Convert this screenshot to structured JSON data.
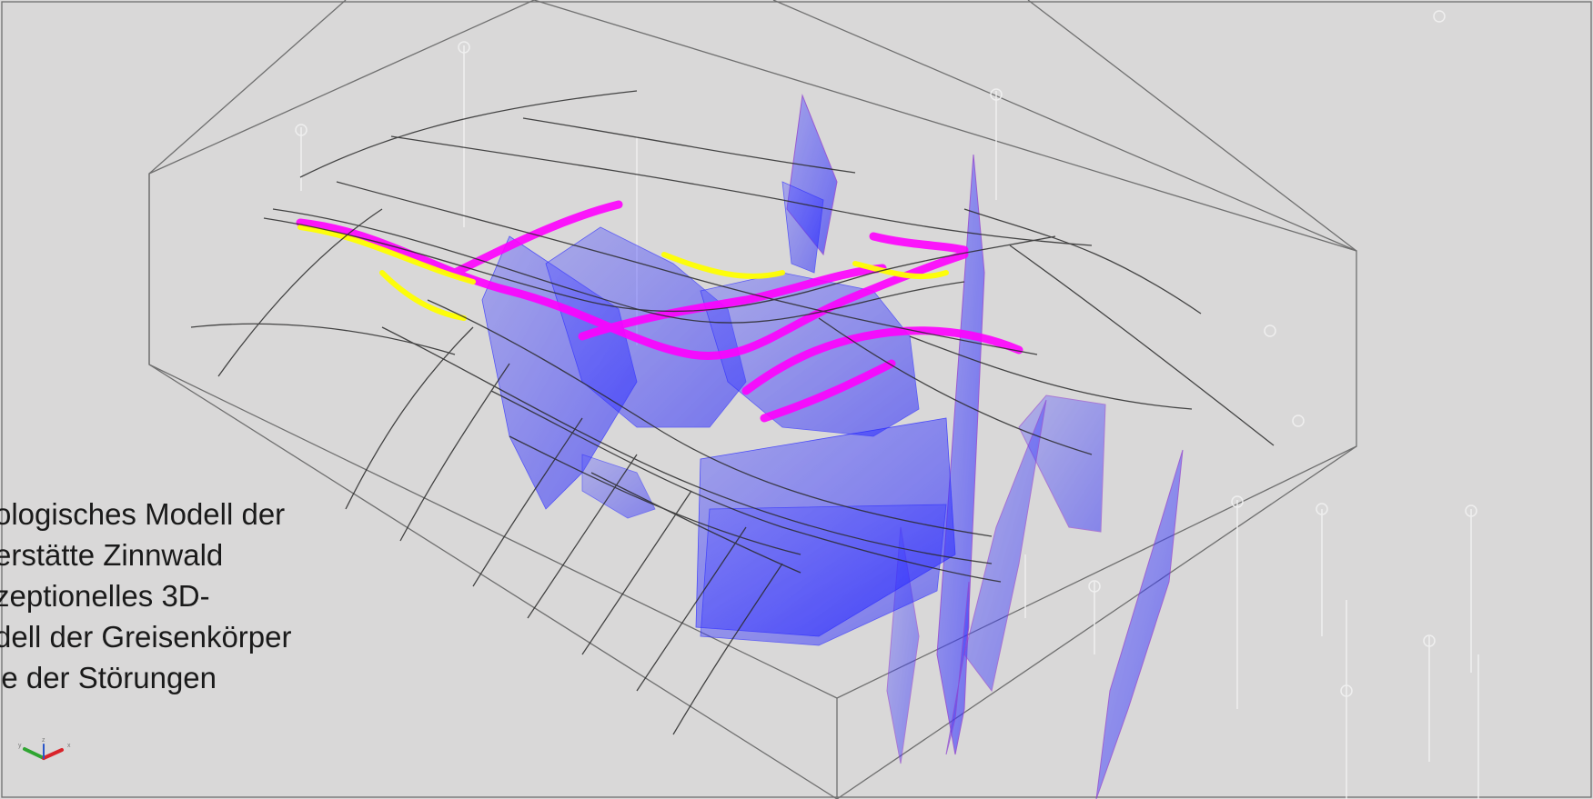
{
  "viewport": {
    "background_color": "#d9d8d8",
    "model_name": "3d-geological-model-viewport"
  },
  "caption": {
    "lines": [
      "ologisches Modell der",
      "erstätte Zinnwald",
      "zeptionelles 3D-",
      "dell der Greisenkörper",
      "ie der Störungen"
    ]
  },
  "axes": {
    "x_label": "x",
    "y_label": "y",
    "z_label": "z",
    "x_color": "#d9232a",
    "y_color": "#2fa531",
    "z_color": "#2a55c8"
  },
  "colors": {
    "frame": "#6f6f6f",
    "greisen_bodies": "#3d3df5",
    "fault_planes": "#6b6bff",
    "magenta_layers": "#ff00ff",
    "yellow_layers": "#ffff00",
    "drillholes": "#f4f4f4"
  }
}
